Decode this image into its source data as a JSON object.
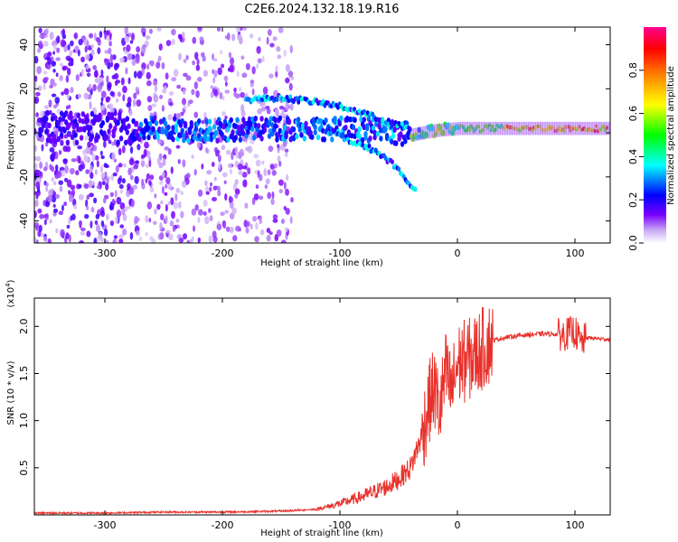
{
  "title": "C2E6.2024.132.18.19.R16",
  "chart_data": [
    {
      "type": "heatmap",
      "xlabel": "Height of straight line (km)",
      "ylabel": "Frequency (Hz)",
      "xlim": [
        -360,
        130
      ],
      "ylim": [
        -50,
        48
      ],
      "x_ticks": [
        -300,
        -200,
        -100,
        0,
        100
      ],
      "y_ticks": [
        -40,
        -20,
        0,
        20,
        40
      ],
      "colorbar": {
        "label": "Normalized spectral amplitude",
        "range": [
          0,
          1
        ],
        "ticks": [
          "0.0",
          "0.2",
          "0.4",
          "0.6",
          "0.8"
        ],
        "colors": [
          "#ffffff",
          "#7a00ff",
          "#0000ff",
          "#00ffff",
          "#00ff00",
          "#ffff00",
          "#ff8000",
          "#ff0000",
          "#ff0080"
        ]
      },
      "features": [
        {
          "name": "noise band",
          "x_range": [
            -360,
            -140
          ],
          "y_range": [
            -50,
            48
          ]
        },
        {
          "name": "main carrier",
          "points": [
            [
              -360,
              2
            ],
            [
              -270,
              2
            ],
            [
              -200,
              1
            ],
            [
              -150,
              2
            ],
            [
              -100,
              2
            ],
            [
              -60,
              1
            ],
            [
              -40,
              -1
            ],
            [
              -20,
              1
            ],
            [
              0,
              2
            ],
            [
              130,
              2
            ]
          ]
        },
        {
          "name": "upper branch",
          "points": [
            [
              -180,
              15
            ],
            [
              -150,
              16
            ],
            [
              -120,
              14
            ],
            [
              -100,
              12
            ],
            [
              -80,
              9
            ],
            [
              -60,
              5
            ],
            [
              -40,
              2
            ]
          ]
        },
        {
          "name": "lower branch",
          "points": [
            [
              -110,
              2
            ],
            [
              -90,
              -4
            ],
            [
              -70,
              -8
            ],
            [
              -55,
              -14
            ],
            [
              -45,
              -20
            ],
            [
              -35,
              -27
            ]
          ]
        }
      ]
    },
    {
      "type": "line",
      "xlabel": "Height of straight line (km)",
      "ylabel": "SNR (10 * v/v)",
      "y_multiplier": "(x10^4)",
      "xlim": [
        -360,
        130
      ],
      "ylim": [
        0,
        2.3
      ],
      "x_ticks": [
        -300,
        -200,
        -100,
        0,
        100
      ],
      "y_ticks": [
        "0.5",
        "1.0",
        "1.5",
        "2.0"
      ],
      "series_color": "#e8302a",
      "series": [
        {
          "x": [
            -360,
            -300,
            -250,
            -200,
            -150,
            -120,
            -100,
            -80,
            -60,
            -50,
            -40,
            -30,
            -25,
            -20,
            -15,
            -10,
            -5,
            0,
            10,
            20,
            30,
            40,
            50,
            60,
            70,
            80,
            90,
            100,
            105,
            110,
            120,
            130
          ],
          "y": [
            0.02,
            0.02,
            0.03,
            0.03,
            0.04,
            0.06,
            0.12,
            0.2,
            0.3,
            0.38,
            0.5,
            0.85,
            1.15,
            1.35,
            1.1,
            1.5,
            1.3,
            1.6,
            1.65,
            1.75,
            1.85,
            1.88,
            1.9,
            1.91,
            1.92,
            1.92,
            1.91,
            1.95,
            1.82,
            1.88,
            1.87,
            1.86
          ]
        }
      ]
    }
  ]
}
